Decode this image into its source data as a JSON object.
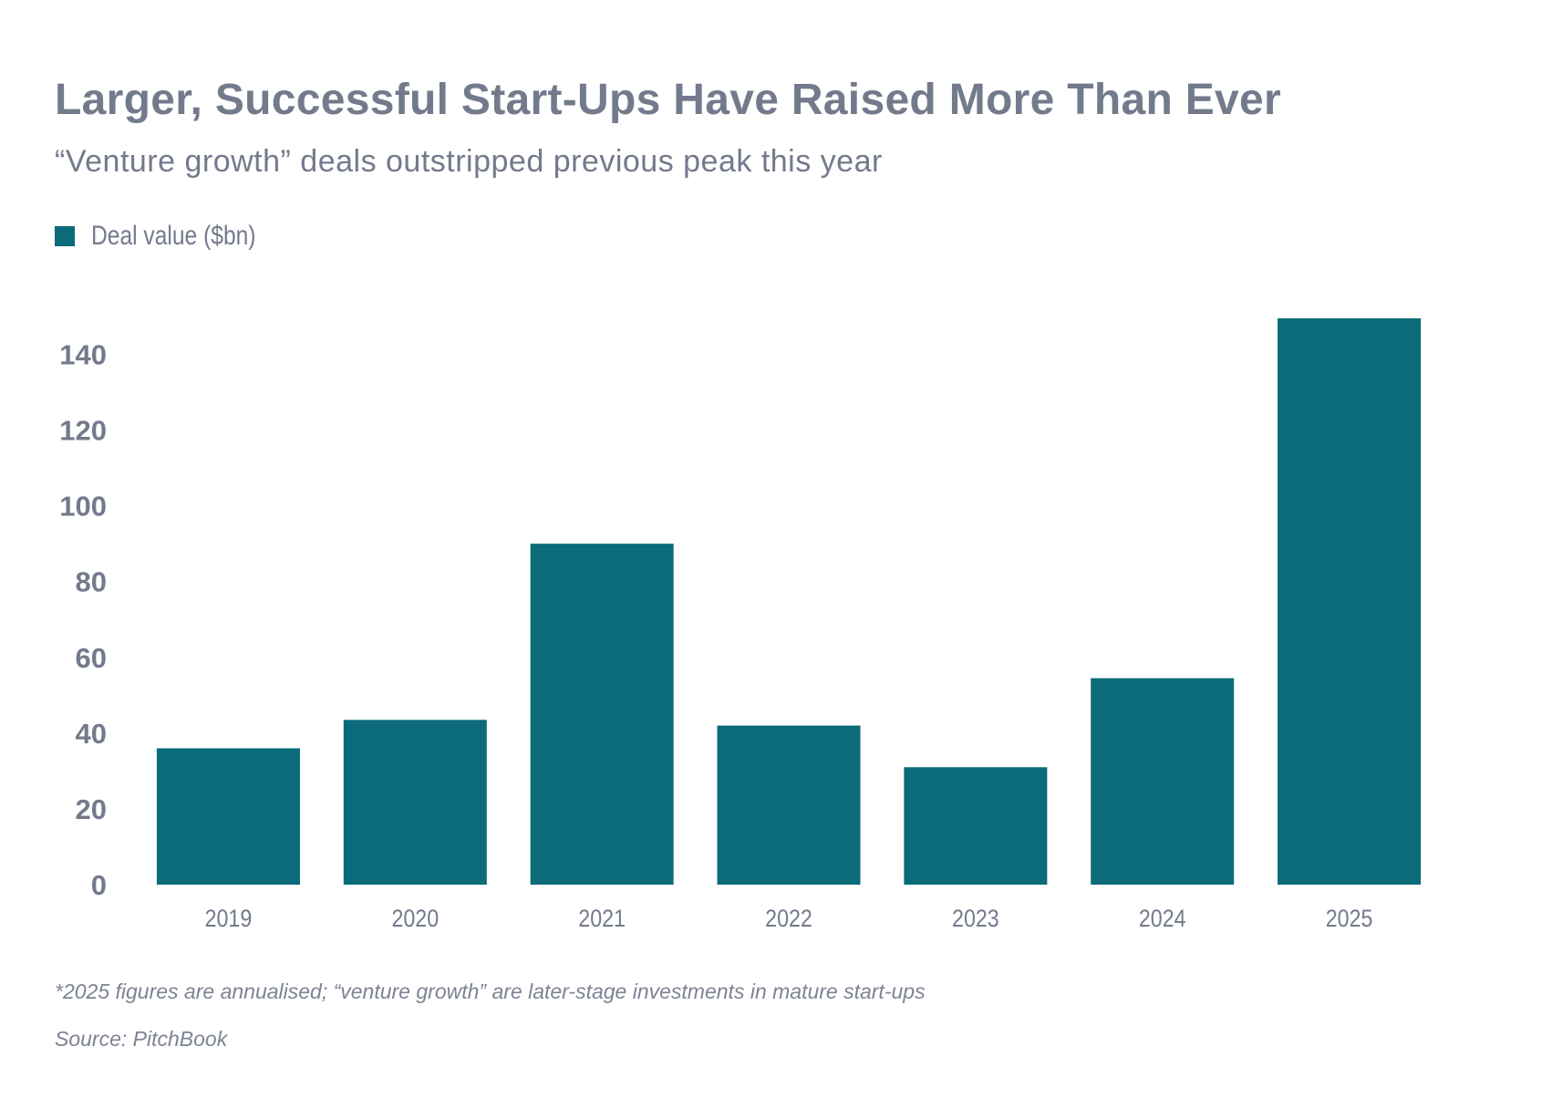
{
  "chart_data": {
    "type": "bar",
    "title": "Larger, Successful Start-Ups Have Raised More Than Ever",
    "subtitle": "“Venture growth” deals outstripped previous peak this year",
    "categories": [
      "2019",
      "2020",
      "2021",
      "2022",
      "2023",
      "2024",
      "2025"
    ],
    "series": [
      {
        "name": "Deal value ($bn)",
        "values": [
          36,
          43.5,
          90,
          42,
          31,
          54.5,
          149.5
        ]
      }
    ],
    "xlabel": "",
    "ylabel": "",
    "ylim": [
      0,
      150
    ],
    "yticks": [
      0,
      20,
      40,
      60,
      80,
      100,
      120,
      140
    ],
    "grid": false,
    "legend_position": "top-left",
    "footnote": "*2025 figures are annualised; “venture growth” are later-stage investments in mature start-ups",
    "source": "Source: PitchBook"
  },
  "colors": {
    "bar": "#0b6b78",
    "text": "#737a8c",
    "note": "#7d8394"
  }
}
